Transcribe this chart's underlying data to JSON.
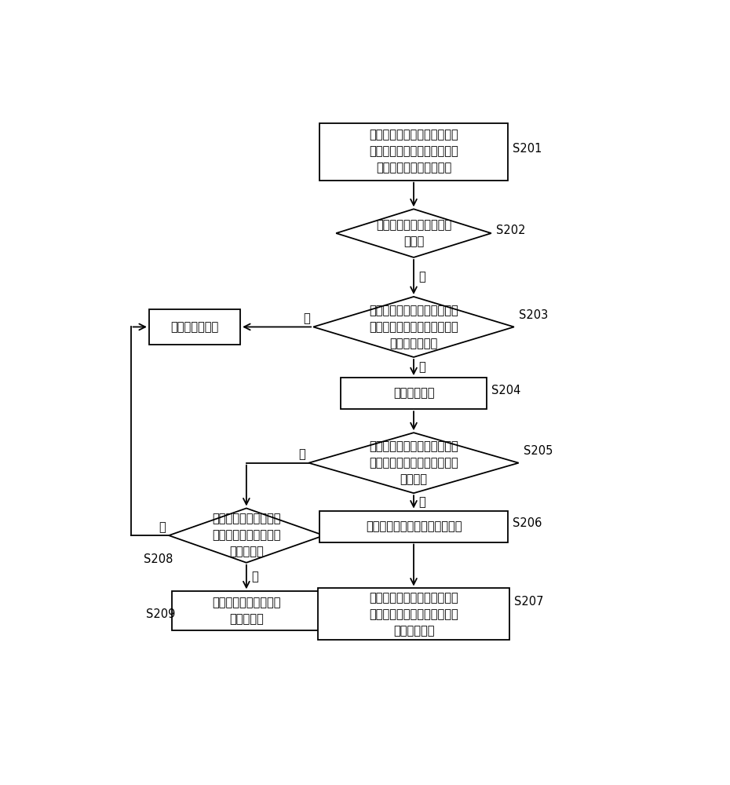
{
  "bg_color": "#ffffff",
  "box_edge_color": "#000000",
  "arrow_color": "#000000",
  "text_color": "#000000",
  "line_width": 1.3,
  "font_size": 10.5,
  "s201_text": "预先设置快速启动拍照的指纹\n信息和用于解锁终端的解锁指\n纹信息，并对其进行保存",
  "s202_text": "检测终端当前是否处于待\n机状态",
  "s203_text": "检测终端的指纹识别按键被按\n下而触发中断的时间是否超过\n预设的时间阈值",
  "standby_text": "停留在待机状态",
  "s204_text": "启动指纹识别",
  "s205_text": "检测用户当前输入的指纹信息\n是否为预设的快速启动拍照的\n指纹信息",
  "s208_text": "检测用户当前输入的指\n纹信息是否为预设的解\n锁指纹信息",
  "s206_text": "直接启动摄像头进行隐蔽式拍照",
  "s209_text": "执行终端解锁操作，进\n入操作系统",
  "s207_text": "当拍照完成时，使终端产生振\n动用以作为拍照成功的标志，\n从而提示用户",
  "yes": "是",
  "no": "否",
  "labels": [
    "S201",
    "S202",
    "S203",
    "S204",
    "S205",
    "S206",
    "S207",
    "S208",
    "S209"
  ]
}
